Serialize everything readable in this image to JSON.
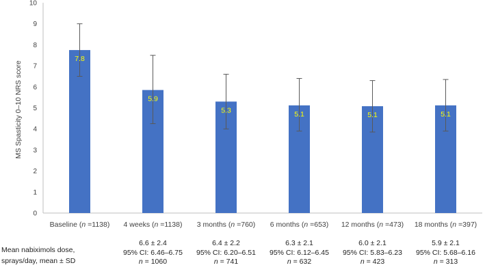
{
  "chart_data": {
    "type": "bar",
    "ylabel": "MS Spasticity 0–10 NRS score",
    "xlabel": "",
    "ylim": [
      0,
      10
    ],
    "yticks": [
      0,
      1,
      2,
      3,
      4,
      5,
      6,
      7,
      8,
      9,
      10
    ],
    "grid": false,
    "bar_color": "#4472C4",
    "label_color": "#FFFF00",
    "categories": [
      {
        "name": "Baseline",
        "n": "1138"
      },
      {
        "name": "4 weeks",
        "n": "1138"
      },
      {
        "name": "3 months",
        "n": "760"
      },
      {
        "name": "6 months",
        "n": "653"
      },
      {
        "name": "12 months",
        "n": "473"
      },
      {
        "name": "18 months",
        "n": "397"
      }
    ],
    "values": [
      7.75,
      5.85,
      5.3,
      5.12,
      5.08,
      5.12
    ],
    "data_labels": [
      "7.8",
      "5.9",
      "5.3",
      "5.1",
      "5.1",
      "5.1"
    ],
    "error_low": [
      6.5,
      4.25,
      4.0,
      3.9,
      3.85,
      3.9
    ],
    "error_high": [
      9.0,
      7.5,
      6.6,
      6.4,
      6.3,
      6.35
    ]
  },
  "dose_table": {
    "header": [
      "Mean nabiximols dose,",
      "sprays/day, mean ± SD"
    ],
    "cells": [
      null,
      {
        "mean": "6.6 ± 2.4",
        "ci": "95% CI: 6.46–6.75",
        "n": "1060"
      },
      {
        "mean": "6.4 ± 2.2",
        "ci": "95% CI: 6.20–6.51",
        "n": "741"
      },
      {
        "mean": "6.3 ± 2.1",
        "ci": "95% CI: 6.12–6.45",
        "n": "632"
      },
      {
        "mean": "6.0 ± 2.1",
        "ci": "95% CI: 5.83–6.23",
        "n": "423"
      },
      {
        "mean": "5.9 ± 2.1",
        "ci": "95% CI: 5.68–6.16",
        "n": "313"
      }
    ]
  }
}
